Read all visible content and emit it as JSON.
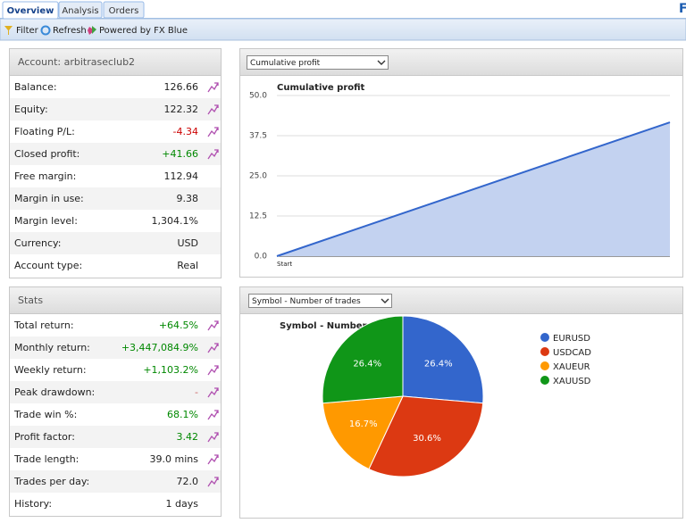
{
  "tabs": [
    "Overview",
    "Analysis",
    "Orders"
  ],
  "brand": "F",
  "toolbar": [
    "Filter",
    "Refresh",
    "Powered by FX Blue"
  ],
  "account": {
    "title": "Account: arbitraseclub2",
    "rows": [
      {
        "label": "Balance:",
        "value": "126.66",
        "chart_icon": true
      },
      {
        "label": "Equity:",
        "value": "122.32",
        "chart_icon": true
      },
      {
        "label": "Floating P/L:",
        "value": "-4.34",
        "color": "#cc0000",
        "chart_icon": true
      },
      {
        "label": "Closed profit:",
        "value": "+41.66",
        "color": "#008800",
        "chart_icon": true
      },
      {
        "label": "Free margin:",
        "value": "112.94"
      },
      {
        "label": "Margin in use:",
        "value": "9.38"
      },
      {
        "label": "Margin level:",
        "value": "1,304.1%"
      },
      {
        "label": "Currency:",
        "value": "USD"
      },
      {
        "label": "Account type:",
        "value": "Real"
      }
    ]
  },
  "stats": {
    "title": "Stats",
    "rows": [
      {
        "label": "Total return:",
        "value": "+64.5%",
        "color": "#008800",
        "chart_icon": true
      },
      {
        "label": "Monthly return:",
        "value": "+3,447,084.9%",
        "color": "#008800",
        "chart_icon": true
      },
      {
        "label": "Weekly return:",
        "value": "+1,103.2%",
        "color": "#008800",
        "chart_icon": true
      },
      {
        "label": "Peak drawdown:",
        "value": "-",
        "color": "#cc6666",
        "chart_icon": true
      },
      {
        "label": "Trade win %:",
        "value": "68.1%",
        "color": "#008800",
        "chart_icon": true
      },
      {
        "label": "Profit factor:",
        "value": "3.42",
        "color": "#008800",
        "chart_icon": true
      },
      {
        "label": "Trade length:",
        "value": "39.0 mins",
        "chart_icon": true
      },
      {
        "label": "Trades per day:",
        "value": "72.0",
        "chart_icon": true
      },
      {
        "label": "History:",
        "value": "1 days"
      }
    ]
  },
  "selectors": [
    "Cumulative profit",
    "Symbol - Number of trades"
  ],
  "chart_data": [
    {
      "type": "line",
      "title": "Cumulative profit",
      "categories": [
        "Start",
        null
      ],
      "values": [
        0,
        41.66
      ],
      "color": "#3366cc",
      "area_color": "#c3d2f0",
      "ylim": [
        0,
        50
      ],
      "yticks": [
        {
          "value": 0,
          "label": "0.0"
        },
        {
          "value": 12.5,
          "label": "12.5"
        },
        {
          "value": 25,
          "label": "25.0"
        },
        {
          "value": 37.5,
          "label": "37.5"
        },
        {
          "value": 50,
          "label": "50.0"
        }
      ],
      "grid": true
    },
    {
      "type": "pie",
      "title": "Symbol - Number of trades",
      "categories": [
        "EURUSD",
        "USDCAD",
        "XAUEUR",
        "XAUUSD"
      ],
      "values": [
        26.4,
        30.6,
        16.7,
        26.4
      ],
      "value_labels": [
        "26.4%",
        "30.6%",
        "16.7%",
        "26.4%"
      ],
      "colors": [
        "#3366cc",
        "#dc3912",
        "#ff9900",
        "#109618"
      ],
      "legend": "right"
    }
  ]
}
